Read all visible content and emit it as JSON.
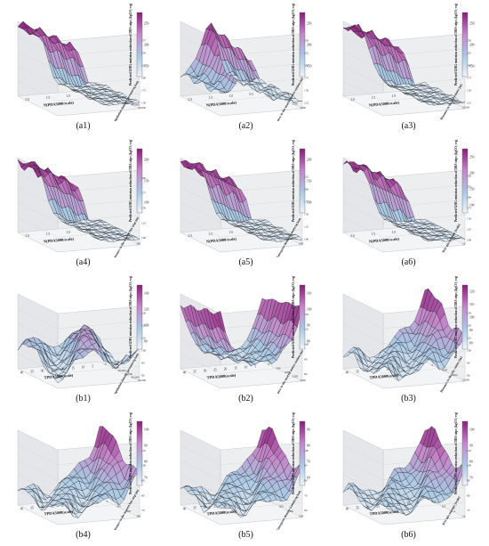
{
  "figure": {
    "panels": [
      {
        "id": "a1",
        "label": "(a1)",
        "xlabel": "N(PDA5000/scale)",
        "ylabel": "Population density (persons/sq km)",
        "zlabel": "Predicted GHG emission reduction of DRS trips (kgCO₂-eq)",
        "xticks": [
          "2.0",
          "1.5",
          "1.0",
          "0.5"
        ],
        "yticks": [
          "0",
          "10,000",
          "20,000",
          "30,000",
          "40,000",
          "50,000"
        ],
        "zticks": [
          "150",
          "175",
          "200",
          "225",
          "250",
          "275"
        ],
        "cbar": [
          "150",
          "200",
          "250"
        ],
        "shape": "cliff"
      },
      {
        "id": "a2",
        "label": "(a2)",
        "xlabel": "N(PDA5000/scale)",
        "ylabel": "Distance to the nearest metro station (m)",
        "zlabel": "Predicted GHG emission reduction of DRS trips (kgCO₂-eq)",
        "xticks": [
          "2.0",
          "1.5",
          "1.0",
          "0.5"
        ],
        "yticks": [
          "0",
          "500",
          "1000",
          "1500",
          "2000"
        ],
        "zticks": [
          "125",
          "150",
          "175",
          "200",
          "225",
          "250"
        ],
        "cbar": [
          "150",
          "200",
          "250"
        ],
        "shape": "ridge"
      },
      {
        "id": "a3",
        "label": "(a3)",
        "xlabel": "N(PDA5000/scale)",
        "ylabel": "Distance to the city center (m)",
        "zlabel": "Predicted GHG emission reduction of DRS trips (kgCO₂-eq)",
        "xticks": [
          "2.0",
          "1.5",
          "1.0",
          "0.5"
        ],
        "yticks": [
          "0",
          "4000",
          "8000",
          "12,000"
        ],
        "zticks": [
          "125",
          "150",
          "175",
          "200",
          "225",
          "250"
        ],
        "cbar": [
          "150",
          "200",
          "250"
        ],
        "shape": "cliff"
      },
      {
        "id": "a4",
        "label": "(a4)",
        "xlabel": "N(PDA5000/scale)",
        "ylabel": "Distance to the nearest bus stop (m)",
        "zlabel": "Predicted GHG emission reduction of DRS trips (kgCO₂-eq)",
        "xticks": [
          "2.0",
          "1.5",
          "1.0",
          "0.5"
        ],
        "yticks": [
          "0",
          "100",
          "200",
          "300"
        ],
        "zticks": [
          "100",
          "125",
          "150",
          "175",
          "200"
        ],
        "cbar": [
          "100",
          "150",
          "200"
        ],
        "shape": "cliff"
      },
      {
        "id": "a5",
        "label": "(a5)",
        "xlabel": "N(PDA5000/scale)",
        "ylabel": "Enterprise density (counts/sq km)",
        "zlabel": "Predicted GHG emission reduction of DRS trips (kgCO₂-eq)",
        "xticks": [
          "2.0",
          "1.5",
          "1.0",
          "0.5"
        ],
        "yticks": [
          "0",
          "200",
          "400",
          "600"
        ],
        "zticks": [
          "100",
          "125",
          "150",
          "175",
          "200",
          "225"
        ],
        "cbar": [
          "100",
          "150",
          "200"
        ],
        "shape": "cliff"
      },
      {
        "id": "a6",
        "label": "(a6)",
        "xlabel": "N(PDA5000/scale)",
        "ylabel": "POI mix entropy (scale)",
        "zlabel": "Predicted GHG emission reduction of DRS trips (kgCO₂-eq)",
        "xticks": [
          "2.0",
          "1.5",
          "1.0",
          "0.5"
        ],
        "yticks": [
          "0.4",
          "0.8",
          "1.2",
          "1.6"
        ],
        "zticks": [
          "100",
          "125",
          "150",
          "175",
          "200",
          "225",
          "250"
        ],
        "cbar": [
          "100",
          "150",
          "200",
          "250"
        ],
        "shape": "cliff"
      },
      {
        "id": "b1",
        "label": "(b1)",
        "xlabel": "TPDA5000(scale)",
        "ylabel": "Population density (persons/sq km)",
        "zlabel": "Predicted GHG emission reduction of DRS trips (kgCO₂-eq)",
        "xticks": [
          "40",
          "35",
          "30",
          "25",
          "20",
          "15",
          "10",
          "5"
        ],
        "yticks": [
          "0",
          "10,000",
          "20,000",
          "30,000",
          "40,000",
          "50,000"
        ],
        "zticks": [
          "80",
          "90",
          "100",
          "110",
          "120",
          "130"
        ],
        "cbar": [
          "80",
          "100",
          "120",
          "140"
        ],
        "shape": "flat"
      },
      {
        "id": "b2",
        "label": "(b2)",
        "xlabel": "TPDA5000(scale)",
        "ylabel": "Distance to the nearest metro station (m)",
        "zlabel": "Predicted GHG emission reduction of DRS trips (kgCO₂-eq)",
        "xticks": [
          "40",
          "35",
          "30",
          "25",
          "20",
          "15",
          "10",
          "5"
        ],
        "yticks": [
          "0",
          "500",
          "1000",
          "1500",
          "2000"
        ],
        "zticks": [
          "80",
          "90",
          "100",
          "110",
          "120"
        ],
        "cbar": [
          "80",
          "90",
          "100",
          "110"
        ],
        "shape": "valley"
      },
      {
        "id": "b3",
        "label": "(b3)",
        "xlabel": "TPDA5000(scale)",
        "ylabel": "Distance to the city center (m)",
        "zlabel": "Predicted GHG emission reduction of DRS trips (kgCO₂-eq)",
        "xticks": [
          "40",
          "35",
          "30",
          "25",
          "20",
          "15",
          "10",
          "5"
        ],
        "yticks": [
          "0",
          "4000",
          "8000",
          "12,000"
        ],
        "zticks": [
          "80",
          "90",
          "100",
          "110",
          "120",
          "130"
        ],
        "cbar": [
          "80",
          "90",
          "100",
          "110",
          "120"
        ],
        "shape": "corner"
      },
      {
        "id": "b4",
        "label": "(b4)",
        "xlabel": "TPDA5000(scale)",
        "ylabel": "Distance to the nearest bus stop (m)",
        "zlabel": "Predicted GHG emission reduction of DRS trips (kgCO₂-eq)",
        "xticks": [
          "40",
          "35",
          "30",
          "25",
          "20",
          "15",
          "10",
          "5"
        ],
        "yticks": [
          "0",
          "100",
          "200",
          "300"
        ],
        "zticks": [
          "70",
          "80",
          "90",
          "100",
          "110"
        ],
        "cbar": [
          "70",
          "80",
          "90",
          "100"
        ],
        "shape": "corner"
      },
      {
        "id": "b5",
        "label": "(b5)",
        "xlabel": "TPDA5000(scale)",
        "ylabel": "Enterprise density (counts/sq km)",
        "zlabel": "Predicted GHG emission reduction of DRS trips (kgCO₂-eq)",
        "xticks": [
          "40",
          "35",
          "30",
          "25",
          "20",
          "15",
          "10",
          "5"
        ],
        "yticks": [
          "0",
          "200",
          "400",
          "600"
        ],
        "zticks": [
          "60",
          "70",
          "80",
          "90",
          "100"
        ],
        "cbar": [
          "60",
          "70",
          "80",
          "90"
        ],
        "shape": "corner"
      },
      {
        "id": "b6",
        "label": "(b6)",
        "xlabel": "TPDA5000(scale)",
        "ylabel": "POI mix entropy (scale)",
        "zlabel": "Predicted GHG emission reduction of DRS trips (kgCO₂-eq)",
        "xticks": [
          "40",
          "35",
          "30",
          "25",
          "20",
          "15",
          "10",
          "5"
        ],
        "yticks": [
          "0.4",
          "0.8",
          "1.2",
          "1.6"
        ],
        "zticks": [
          "70",
          "80",
          "90",
          "100",
          "110"
        ],
        "cbar": [
          "70",
          "80",
          "90",
          "100"
        ],
        "shape": "corner"
      }
    ]
  },
  "chart_data": [
    {
      "type": "surface",
      "panel": "(a1)",
      "xlabel": "N(PDA5000/scale)",
      "ylabel": "Population density (persons/sq km)",
      "zlabel": "Predicted GHG emission reduction of DRS trips (kgCO₂-eq)",
      "x_range": [
        0,
        2.0
      ],
      "y_range": [
        0,
        50000
      ],
      "z_range": [
        150,
        275
      ]
    },
    {
      "type": "surface",
      "panel": "(a2)",
      "xlabel": "N(PDA5000/scale)",
      "ylabel": "Distance to the nearest metro station (m)",
      "zlabel": "Predicted GHG emission reduction of DRS trips (kgCO₂-eq)",
      "x_range": [
        0,
        2.0
      ],
      "y_range": [
        0,
        2000
      ],
      "z_range": [
        125,
        250
      ]
    },
    {
      "type": "surface",
      "panel": "(a3)",
      "xlabel": "N(PDA5000/scale)",
      "ylabel": "Distance to the city center (m)",
      "zlabel": "Predicted GHG emission reduction of DRS trips (kgCO₂-eq)",
      "x_range": [
        0,
        2.0
      ],
      "y_range": [
        0,
        12000
      ],
      "z_range": [
        125,
        250
      ]
    },
    {
      "type": "surface",
      "panel": "(a4)",
      "xlabel": "N(PDA5000/scale)",
      "ylabel": "Distance to the nearest bus stop (m)",
      "zlabel": "Predicted GHG emission reduction of DRS trips (kgCO₂-eq)",
      "x_range": [
        0,
        2.0
      ],
      "y_range": [
        0,
        300
      ],
      "z_range": [
        100,
        200
      ]
    },
    {
      "type": "surface",
      "panel": "(a5)",
      "xlabel": "N(PDA5000/scale)",
      "ylabel": "Enterprise density (counts/sq km)",
      "zlabel": "Predicted GHG emission reduction of DRS trips (kgCO₂-eq)",
      "x_range": [
        0,
        2.0
      ],
      "y_range": [
        0,
        600
      ],
      "z_range": [
        100,
        225
      ]
    },
    {
      "type": "surface",
      "panel": "(a6)",
      "xlabel": "N(PDA5000/scale)",
      "ylabel": "POI mix entropy (scale)",
      "zlabel": "Predicted GHG emission reduction of DRS trips (kgCO₂-eq)",
      "x_range": [
        0,
        2.0
      ],
      "y_range": [
        0.4,
        1.6
      ],
      "z_range": [
        100,
        250
      ]
    },
    {
      "type": "surface",
      "panel": "(b1)",
      "xlabel": "TPDA5000(scale)",
      "ylabel": "Population density (persons/sq km)",
      "zlabel": "Predicted GHG emission reduction of DRS trips (kgCO₂-eq)",
      "x_range": [
        5,
        40
      ],
      "y_range": [
        0,
        50000
      ],
      "z_range": [
        80,
        130
      ]
    },
    {
      "type": "surface",
      "panel": "(b2)",
      "xlabel": "TPDA5000(scale)",
      "ylabel": "Distance to the nearest metro station (m)",
      "zlabel": "Predicted GHG emission reduction of DRS trips (kgCO₂-eq)",
      "x_range": [
        5,
        40
      ],
      "y_range": [
        0,
        2000
      ],
      "z_range": [
        80,
        120
      ]
    },
    {
      "type": "surface",
      "panel": "(b3)",
      "xlabel": "TPDA5000(scale)",
      "ylabel": "Distance to the city center (m)",
      "zlabel": "Predicted GHG emission reduction of DRS trips (kgCO₂-eq)",
      "x_range": [
        5,
        40
      ],
      "y_range": [
        0,
        12000
      ],
      "z_range": [
        80,
        130
      ]
    },
    {
      "type": "surface",
      "panel": "(b4)",
      "xlabel": "TPDA5000(scale)",
      "ylabel": "Distance to the nearest bus stop (m)",
      "zlabel": "Predicted GHG emission reduction of DRS trips (kgCO₂-eq)",
      "x_range": [
        5,
        40
      ],
      "y_range": [
        0,
        300
      ],
      "z_range": [
        70,
        110
      ]
    },
    {
      "type": "surface",
      "panel": "(b5)",
      "xlabel": "TPDA5000(scale)",
      "ylabel": "Enterprise density (counts/sq km)",
      "zlabel": "Predicted GHG emission reduction of DRS trips (kgCO₂-eq)",
      "x_range": [
        5,
        40
      ],
      "y_range": [
        0,
        600
      ],
      "z_range": [
        60,
        100
      ]
    },
    {
      "type": "surface",
      "panel": "(b6)",
      "xlabel": "TPDA5000(scale)",
      "ylabel": "POI mix entropy (scale)",
      "zlabel": "Predicted GHG emission reduction of DRS trips (kgCO₂-eq)",
      "x_range": [
        5,
        40
      ],
      "y_range": [
        0.4,
        1.6
      ],
      "z_range": [
        70,
        110
      ]
    }
  ],
  "colors": {
    "high": "#8b1a7a",
    "mid": "#c586c9",
    "low": "#a9c7e3",
    "base": "#eef4fa",
    "line": "#1a1a1a"
  }
}
